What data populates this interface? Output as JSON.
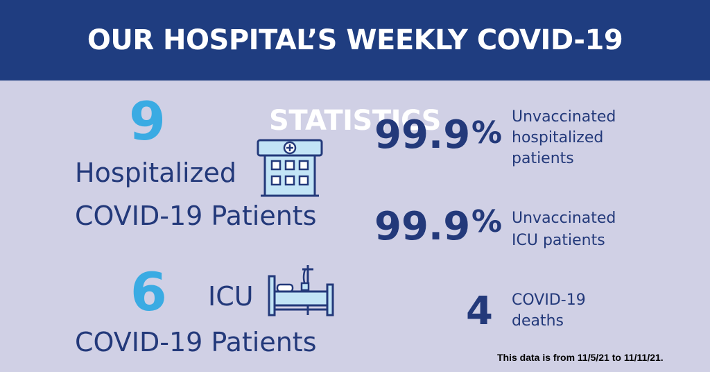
{
  "title": "OUR HOSPITAL’S WEEKLY COVID-19 STATISTICS",
  "colors": {
    "header": "#1f3d80",
    "background": "#d0d0e5",
    "accent": "#3aabe3",
    "navy": "#23397a"
  },
  "hospitalized": {
    "value": "9",
    "line1": "Hospitalized",
    "line2": "COVID-19 Patients",
    "icon": "hospital-building-icon"
  },
  "icu": {
    "value": "6",
    "label": "ICU",
    "line2": "COVID-19 Patients",
    "icon": "hospital-bed-icon"
  },
  "stats": [
    {
      "value": "99.9",
      "unit": "%",
      "line1": "Unvaccinated",
      "line2": "hospitalized",
      "line3": "patients"
    },
    {
      "value": "99.9",
      "unit": "%",
      "line1": "Unvaccinated",
      "line2": "ICU patients"
    },
    {
      "value": "4",
      "line1": "COVID-19",
      "line2": "deaths"
    }
  ],
  "footnote": "This data is from 11/5/21 to 11/11/21."
}
